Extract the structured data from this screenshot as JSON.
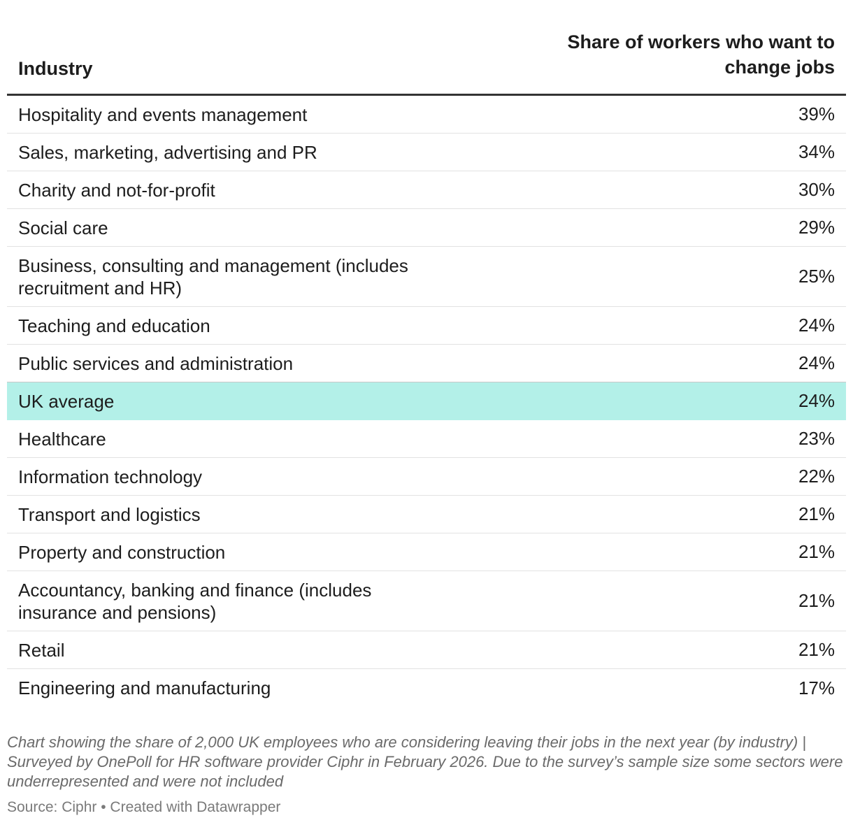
{
  "chart_data": {
    "type": "table",
    "columns": {
      "industry": "Industry",
      "share": "Share of workers who want to change jobs"
    },
    "rows": [
      {
        "industry": "Hospitality and events management",
        "share": "39%",
        "value": 39
      },
      {
        "industry": "Sales, marketing, advertising and PR",
        "share": "34%",
        "value": 34
      },
      {
        "industry": "Charity and not-for-profit",
        "share": "30%",
        "value": 30
      },
      {
        "industry": "Social care",
        "share": "29%",
        "value": 29
      },
      {
        "industry": "Business, consulting and management (includes recruitment and HR)",
        "share": "25%",
        "value": 25
      },
      {
        "industry": "Teaching and education",
        "share": "24%",
        "value": 24
      },
      {
        "industry": "Public services and administration",
        "share": "24%",
        "value": 24
      },
      {
        "industry": "UK average",
        "share": "24%",
        "value": 24
      },
      {
        "industry": "Healthcare",
        "share": "23%",
        "value": 23
      },
      {
        "industry": "Information technology",
        "share": "22%",
        "value": 22
      },
      {
        "industry": "Transport and logistics",
        "share": "21%",
        "value": 21
      },
      {
        "industry": "Property and construction",
        "share": "21%",
        "value": 21
      },
      {
        "industry": "Accountancy, banking and finance (includes insurance and pensions)",
        "share": "21%",
        "value": 21
      },
      {
        "industry": "Retail",
        "share": "21%",
        "value": 21
      },
      {
        "industry": "Engineering and manufacturing",
        "share": "17%",
        "value": 17
      }
    ],
    "highlight_color": "#b3f0e8",
    "notes": "Chart showing the share of 2,000 UK employees who are considering leaving their jobs in the next year (by industry) | Surveyed by OnePoll for HR software provider Ciphr in February 2026. Due to the survey’s sample size some sectors were underrepresented and were not included",
    "source": "Source: Ciphr • Created with Datawrapper"
  }
}
